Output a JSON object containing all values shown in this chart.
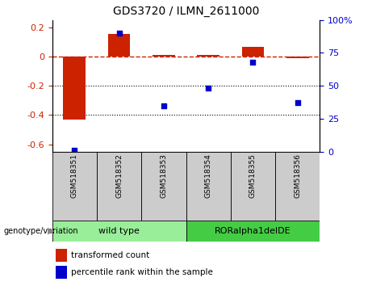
{
  "title": "GDS3720 / ILMN_2611000",
  "samples": [
    "GSM518351",
    "GSM518352",
    "GSM518353",
    "GSM518354",
    "GSM518355",
    "GSM518356"
  ],
  "transformed_count": [
    -0.43,
    0.155,
    0.01,
    0.01,
    0.065,
    -0.01
  ],
  "percentile_rank": [
    1.0,
    90.0,
    35.0,
    48.0,
    68.0,
    37.0
  ],
  "left_ylim": [
    -0.65,
    0.25
  ],
  "right_ylim": [
    0,
    100
  ],
  "left_yticks": [
    -0.6,
    -0.4,
    -0.2,
    0.0,
    0.2
  ],
  "right_yticks": [
    0,
    25,
    50,
    75,
    100
  ],
  "bar_color": "#cc2200",
  "dot_color": "#0000cc",
  "dashed_line_color": "#cc2200",
  "dot_line_color": "black",
  "group1_label": "wild type",
  "group2_label": "RORalpha1delDE",
  "group1_color": "#99ee99",
  "group2_color": "#44cc44",
  "genotype_label": "genotype/variation",
  "legend_bar_label": "transformed count",
  "legend_dot_label": "percentile rank within the sample",
  "group1_indices": [
    0,
    1,
    2
  ],
  "group2_indices": [
    3,
    4,
    5
  ],
  "sample_box_color": "#cccccc"
}
